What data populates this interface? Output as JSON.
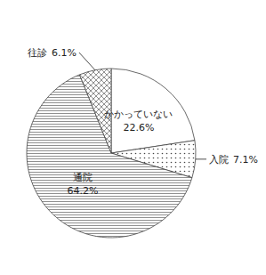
{
  "chart_data": {
    "type": "pie",
    "categories": [
      "かかっていない",
      "入院",
      "通院",
      "往診"
    ],
    "values": [
      22.6,
      7.1,
      64.2,
      6.1
    ],
    "value_labels": [
      "22.6%",
      "7.1%",
      "64.2%",
      "6.1%"
    ],
    "colors": [
      "white",
      "white",
      "white",
      "white"
    ],
    "data_labels": true
  }
}
